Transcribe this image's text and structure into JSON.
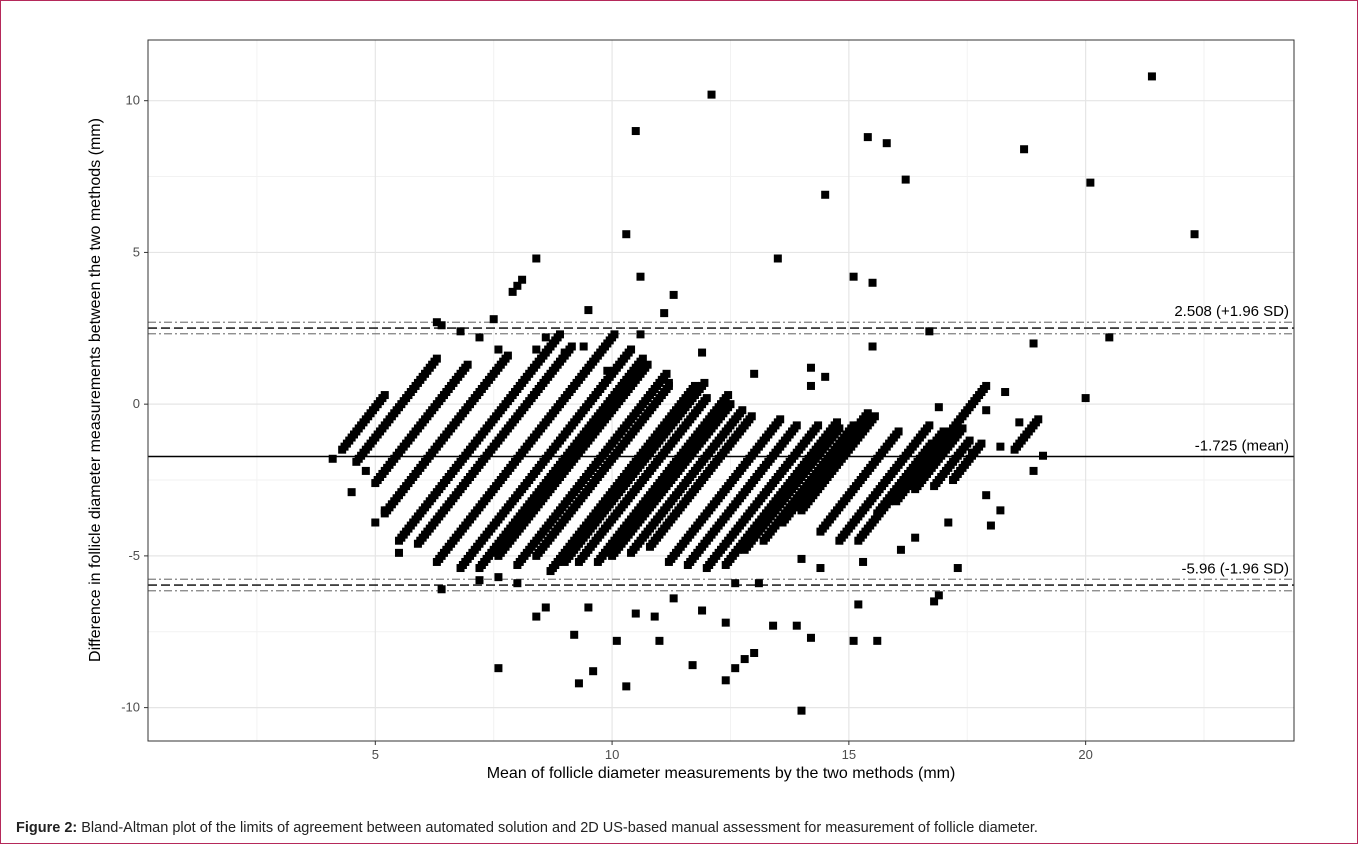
{
  "caption": {
    "label": "Figure 2:",
    "text": " Bland-Altman plot of the limits of agreement between automated solution and 2D US-based manual assessment for measurement of follicle diameter."
  },
  "chart_data": {
    "type": "scatter",
    "xlabel": "Mean of follicle diameter measurements by the two methods (mm)",
    "ylabel": "Difference in follicle diameter measurements between the two methods (mm)",
    "xlim": [
      0.2,
      24.4
    ],
    "ylim": [
      -11.1,
      12.0
    ],
    "x_ticks": [
      5,
      10,
      15,
      20
    ],
    "y_ticks": [
      -10,
      -5,
      0,
      5,
      10
    ],
    "grid": true,
    "marker": "square",
    "colors": {
      "points": "#000000",
      "grid_major": "#e5e5e5",
      "grid_minor": "#f2f2f2",
      "ci_lines": "#808080"
    },
    "reference_lines": [
      {
        "name": "upper_loa",
        "value": 2.508,
        "label": "2.508 (+1.96 SD)",
        "ci": [
          2.32,
          2.7
        ]
      },
      {
        "name": "mean",
        "value": -1.725,
        "label": "-1.725 (mean)"
      },
      {
        "name": "lower_loa",
        "value": -5.96,
        "label": "-5.96 (-1.96 SD)",
        "ci": [
          -6.15,
          -5.77
        ]
      }
    ],
    "outliers": [
      [
        21.4,
        10.8
      ],
      [
        12.1,
        10.2
      ],
      [
        10.5,
        9.0
      ],
      [
        15.4,
        8.8
      ],
      [
        15.8,
        8.6
      ],
      [
        18.7,
        8.4
      ],
      [
        16.2,
        7.4
      ],
      [
        20.1,
        7.3
      ],
      [
        14.5,
        6.9
      ],
      [
        10.3,
        5.6
      ],
      [
        22.3,
        5.6
      ],
      [
        13.5,
        4.8
      ],
      [
        8.4,
        4.8
      ],
      [
        10.6,
        4.2
      ],
      [
        15.1,
        4.2
      ],
      [
        15.5,
        4.0
      ],
      [
        8.1,
        4.1
      ],
      [
        8.0,
        3.9
      ],
      [
        7.9,
        3.7
      ],
      [
        11.3,
        3.6
      ],
      [
        9.5,
        3.1
      ],
      [
        11.1,
        3.0
      ],
      [
        7.5,
        2.8
      ],
      [
        6.3,
        2.7
      ],
      [
        6.4,
        2.6
      ],
      [
        8.6,
        2.2
      ],
      [
        6.8,
        2.4
      ],
      [
        10.6,
        2.3
      ],
      [
        7.2,
        2.2
      ],
      [
        20.5,
        2.2
      ],
      [
        16.7,
        2.4
      ],
      [
        18.9,
        2.0
      ],
      [
        15.5,
        1.9
      ],
      [
        9.4,
        1.9
      ],
      [
        8.4,
        1.8
      ],
      [
        7.6,
        1.8
      ],
      [
        11.9,
        1.7
      ],
      [
        9.0,
        1.7
      ],
      [
        10.4,
        1.8
      ],
      [
        20.0,
        0.2
      ],
      [
        18.3,
        0.4
      ],
      [
        4.1,
        -1.8
      ],
      [
        4.5,
        -2.9
      ],
      [
        4.8,
        -2.2
      ],
      [
        5.0,
        -3.9
      ],
      [
        5.2,
        -3.5
      ],
      [
        5.5,
        -4.9
      ],
      [
        6.4,
        -6.1
      ],
      [
        7.2,
        -5.8
      ],
      [
        7.6,
        -5.7
      ],
      [
        8.0,
        -5.9
      ],
      [
        8.4,
        -7.0
      ],
      [
        8.6,
        -6.7
      ],
      [
        7.6,
        -8.7
      ],
      [
        9.2,
        -7.6
      ],
      [
        9.5,
        -6.7
      ],
      [
        9.3,
        -9.2
      ],
      [
        9.6,
        -8.8
      ],
      [
        10.1,
        -7.8
      ],
      [
        10.3,
        -9.3
      ],
      [
        10.5,
        -6.9
      ],
      [
        10.9,
        -7.0
      ],
      [
        11.0,
        -7.8
      ],
      [
        11.3,
        -6.4
      ],
      [
        11.7,
        -8.6
      ],
      [
        11.9,
        -6.8
      ],
      [
        12.4,
        -7.2
      ],
      [
        12.4,
        -9.1
      ],
      [
        12.6,
        -8.7
      ],
      [
        12.8,
        -8.4
      ],
      [
        13.0,
        -8.2
      ],
      [
        13.4,
        -7.3
      ],
      [
        13.9,
        -7.3
      ],
      [
        14.0,
        -10.1
      ],
      [
        14.2,
        -7.7
      ],
      [
        15.1,
        -7.8
      ],
      [
        15.6,
        -7.8
      ],
      [
        15.2,
        -6.6
      ],
      [
        16.9,
        -6.3
      ],
      [
        16.8,
        -6.5
      ],
      [
        17.3,
        -5.4
      ],
      [
        18.0,
        -4.0
      ],
      [
        18.2,
        -3.5
      ],
      [
        17.9,
        -3.0
      ],
      [
        19.1,
        -1.7
      ],
      [
        18.9,
        -2.2
      ],
      [
        18.6,
        -0.6
      ],
      [
        18.2,
        -1.4
      ],
      [
        17.9,
        -0.2
      ],
      [
        16.9,
        -0.1
      ],
      [
        17.6,
        -1.6
      ],
      [
        17.1,
        -3.9
      ],
      [
        16.4,
        -4.4
      ],
      [
        16.1,
        -4.8
      ],
      [
        15.3,
        -5.2
      ],
      [
        14.4,
        -5.4
      ],
      [
        14.0,
        -5.1
      ],
      [
        13.9,
        -3.4
      ],
      [
        12.6,
        -5.9
      ],
      [
        13.1,
        -5.9
      ],
      [
        14.2,
        1.2
      ],
      [
        14.5,
        0.9
      ],
      [
        14.2,
        0.6
      ],
      [
        9.9,
        1.1
      ],
      [
        11.2,
        0.7
      ],
      [
        13.0,
        1.0
      ]
    ],
    "bands": [
      {
        "x_start": 4.3,
        "y_start": -1.5,
        "y_end": 0.3
      },
      {
        "x_start": 4.6,
        "y_start": -1.9,
        "y_end": 1.5
      },
      {
        "x_start": 5.0,
        "y_start": -2.6,
        "y_end": 1.3
      },
      {
        "x_start": 5.2,
        "y_start": -3.6,
        "y_end": 1.6
      },
      {
        "x_start": 5.5,
        "y_start": -4.5,
        "y_end": 2.3
      },
      {
        "x_start": 5.9,
        "y_start": -4.6,
        "y_end": 1.9
      },
      {
        "x_start": 6.3,
        "y_start": -5.2,
        "y_end": 2.3
      },
      {
        "x_start": 6.8,
        "y_start": -5.4,
        "y_end": 1.8
      },
      {
        "x_start": 7.2,
        "y_start": -5.4,
        "y_end": 1.5
      },
      {
        "x_start": 7.6,
        "y_start": -5.0,
        "y_end": 1.3
      },
      {
        "x_start": 8.0,
        "y_start": -5.3,
        "y_end": 1.0
      },
      {
        "x_start": 8.4,
        "y_start": -5.0,
        "y_end": 0.6
      },
      {
        "x_start": 8.7,
        "y_start": -5.5,
        "y_end": 0.6
      },
      {
        "x_start": 9.0,
        "y_start": -5.2,
        "y_end": 0.7
      },
      {
        "x_start": 9.3,
        "y_start": -5.2,
        "y_end": 0.2
      },
      {
        "x_start": 9.7,
        "y_start": -5.2,
        "y_end": 0.3
      },
      {
        "x_start": 10.0,
        "y_start": -5.0,
        "y_end": 0.0
      },
      {
        "x_start": 10.4,
        "y_start": -4.9,
        "y_end": -0.2
      },
      {
        "x_start": 10.8,
        "y_start": -4.7,
        "y_end": -0.4
      },
      {
        "x_start": 11.2,
        "y_start": -5.2,
        "y_end": -0.5
      },
      {
        "x_start": 11.6,
        "y_start": -5.3,
        "y_end": -0.7
      },
      {
        "x_start": 12.0,
        "y_start": -5.4,
        "y_end": -0.7
      },
      {
        "x_start": 12.4,
        "y_start": -5.3,
        "y_end": -0.6
      },
      {
        "x_start": 12.8,
        "y_start": -4.8,
        "y_end": -0.8
      },
      {
        "x_start": 13.2,
        "y_start": -4.5,
        "y_end": -0.7
      },
      {
        "x_start": 13.6,
        "y_start": -3.9,
        "y_end": -0.3
      },
      {
        "x_start": 14.0,
        "y_start": -3.5,
        "y_end": -0.4
      },
      {
        "x_start": 14.4,
        "y_start": -4.2,
        "y_end": -0.9
      },
      {
        "x_start": 14.8,
        "y_start": -4.5,
        "y_end": -0.7
      },
      {
        "x_start": 15.2,
        "y_start": -4.5,
        "y_end": -0.9
      },
      {
        "x_start": 15.6,
        "y_start": -3.6,
        "y_end": -1.3
      },
      {
        "x_start": 16.0,
        "y_start": -3.2,
        "y_end": 0.6
      },
      {
        "x_start": 16.4,
        "y_start": -2.8,
        "y_end": -0.8
      },
      {
        "x_start": 16.8,
        "y_start": -2.7,
        "y_end": -1.2
      },
      {
        "x_start": 17.2,
        "y_start": -2.5,
        "y_end": -1.3
      },
      {
        "x_start": 18.5,
        "y_start": -1.5,
        "y_end": -0.5
      }
    ]
  }
}
